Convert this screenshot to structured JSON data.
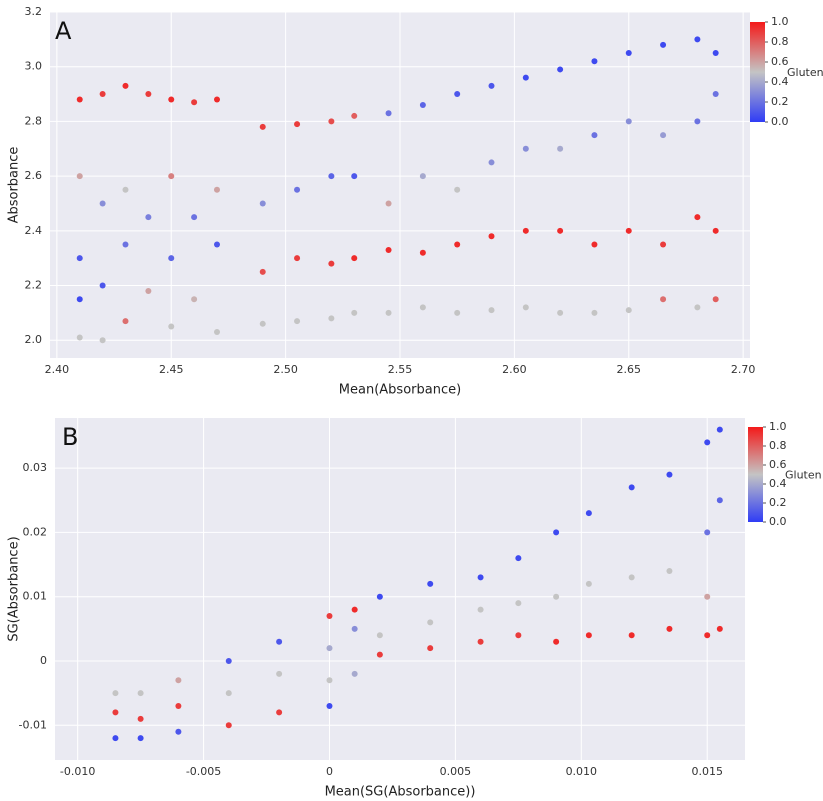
{
  "chart_data": [
    {
      "type": "scatter",
      "panel": "A",
      "xlabel": "Mean(Absorbance)",
      "ylabel": "Absorbance",
      "xlim": [
        2.397,
        2.703
      ],
      "ylim": [
        1.935,
        3.2
      ],
      "xticks": [
        {
          "value": 2.4,
          "label": "2.40"
        },
        2.45,
        {
          "value": 2.5,
          "label": "2.50"
        },
        2.55,
        {
          "value": 2.6,
          "label": "2.60"
        },
        2.65,
        {
          "value": 2.7,
          "label": "2.70"
        }
      ],
      "yticks": [
        {
          "value": 2,
          "label": "2.0"
        },
        2.2,
        2.4,
        2.6,
        2.8,
        {
          "value": 3,
          "label": "3.0"
        },
        3.2
      ],
      "grid": true,
      "colorbar": {
        "label": "Gluten",
        "lim": [
          0,
          1
        ],
        "ticks": [
          {
            "value": 0,
            "label": "0.0"
          },
          0.2,
          0.4,
          0.6,
          0.8,
          {
            "value": 1,
            "label": "1.0"
          }
        ],
        "colors": [
          "#2f3cf5",
          "#c4c4c4",
          "#f41a1a"
        ]
      },
      "x": [
        2.41,
        2.41,
        2.41,
        2.41,
        2.41,
        2.42,
        2.42,
        2.42,
        2.42,
        2.43,
        2.43,
        2.43,
        2.43,
        2.44,
        2.44,
        2.44,
        2.45,
        2.45,
        2.45,
        2.45,
        2.46,
        2.46,
        2.46,
        2.47,
        2.47,
        2.47,
        2.47,
        2.49,
        2.49,
        2.49,
        2.49,
        2.505,
        2.505,
        2.505,
        2.505,
        2.52,
        2.52,
        2.52,
        2.52,
        2.53,
        2.53,
        2.53,
        2.53,
        2.545,
        2.545,
        2.545,
        2.545,
        2.56,
        2.56,
        2.56,
        2.56,
        2.575,
        2.575,
        2.575,
        2.575,
        2.59,
        2.59,
        2.59,
        2.59,
        2.605,
        2.605,
        2.605,
        2.605,
        2.62,
        2.62,
        2.62,
        2.62,
        2.635,
        2.635,
        2.635,
        2.635,
        2.65,
        2.65,
        2.65,
        2.65,
        2.665,
        2.665,
        2.665,
        2.665,
        2.68,
        2.68,
        2.68,
        2.68,
        2.688,
        2.688,
        2.688,
        2.688
      ],
      "y": [
        2.88,
        2.6,
        2.3,
        2.15,
        2.01,
        2.9,
        2.5,
        2.2,
        2.0,
        2.93,
        2.55,
        2.35,
        2.07,
        2.9,
        2.45,
        2.18,
        2.88,
        2.6,
        2.3,
        2.05,
        2.87,
        2.45,
        2.15,
        2.88,
        2.55,
        2.35,
        2.03,
        2.78,
        2.5,
        2.25,
        2.06,
        2.79,
        2.55,
        2.3,
        2.07,
        2.8,
        2.6,
        2.28,
        2.08,
        2.82,
        2.6,
        2.3,
        2.1,
        2.83,
        2.5,
        2.33,
        2.1,
        2.86,
        2.6,
        2.32,
        2.12,
        2.9,
        2.55,
        2.35,
        2.1,
        2.93,
        2.65,
        2.38,
        2.11,
        2.96,
        2.7,
        2.4,
        2.12,
        2.99,
        2.7,
        2.4,
        2.1,
        3.02,
        2.75,
        2.35,
        2.1,
        3.05,
        2.8,
        2.4,
        2.11,
        3.08,
        2.75,
        2.35,
        2.15,
        3.1,
        2.8,
        2.45,
        2.12,
        3.05,
        2.9,
        2.4,
        2.15
      ],
      "c": [
        0.95,
        0.6,
        0.1,
        0.05,
        0.5,
        0.9,
        0.3,
        0.1,
        0.5,
        0.95,
        0.5,
        0.2,
        0.75,
        0.9,
        0.25,
        0.6,
        0.95,
        0.7,
        0.15,
        0.5,
        0.9,
        0.2,
        0.55,
        0.95,
        0.6,
        0.1,
        0.5,
        0.9,
        0.3,
        0.85,
        0.5,
        0.9,
        0.2,
        0.9,
        0.5,
        0.85,
        0.15,
        0.9,
        0.5,
        0.8,
        0.1,
        0.95,
        0.5,
        0.2,
        0.6,
        0.95,
        0.5,
        0.15,
        0.4,
        0.95,
        0.5,
        0.1,
        0.5,
        0.95,
        0.5,
        0.1,
        0.3,
        0.95,
        0.5,
        0.05,
        0.3,
        0.95,
        0.5,
        0.05,
        0.4,
        0.95,
        0.5,
        0.05,
        0.2,
        0.95,
        0.5,
        0.05,
        0.3,
        0.95,
        0.5,
        0.05,
        0.35,
        0.9,
        0.75,
        0.05,
        0.2,
        0.95,
        0.5,
        0.05,
        0.2,
        0.95,
        0.8
      ]
    },
    {
      "type": "scatter",
      "panel": "B",
      "xlabel": "Mean(SG(Absorbance))",
      "ylabel": "SG(Absorbance)",
      "xlim": [
        -0.0109,
        0.0165
      ],
      "ylim": [
        -0.0154,
        0.0378
      ],
      "xticks": [
        {
          "value": -0.01,
          "label": "-0.010"
        },
        -0.005,
        0,
        0.005,
        {
          "value": 0.01,
          "label": "0.010"
        },
        0.015
      ],
      "yticks": [
        -0.01,
        0,
        0.01,
        0.02,
        0.03
      ],
      "grid": true,
      "colorbar": {
        "label": "Gluten",
        "lim": [
          0,
          1
        ],
        "ticks": [
          {
            "value": 0,
            "label": "0.0"
          },
          0.2,
          0.4,
          0.6,
          0.8,
          {
            "value": 1,
            "label": "1.0"
          }
        ],
        "colors": [
          "#2f3cf5",
          "#c4c4c4",
          "#f41a1a"
        ]
      },
      "x": [
        -0.0085,
        -0.0085,
        -0.0085,
        -0.0075,
        -0.0075,
        -0.0075,
        -0.006,
        -0.006,
        -0.006,
        -0.004,
        -0.004,
        -0.004,
        -0.002,
        -0.002,
        -0.002,
        0,
        0,
        0,
        0,
        0.001,
        0.001,
        0.001,
        0.002,
        0.002,
        0.002,
        0.004,
        0.004,
        0.004,
        0.006,
        0.006,
        0.006,
        0.0075,
        0.0075,
        0.0075,
        0.009,
        0.009,
        0.009,
        0.0103,
        0.0103,
        0.0103,
        0.012,
        0.012,
        0.012,
        0.0135,
        0.0135,
        0.0135,
        0.015,
        0.015,
        0.015,
        0.015,
        0.0155,
        0.0155,
        0.0155
      ],
      "y": [
        -0.005,
        -0.008,
        -0.012,
        -0.005,
        -0.009,
        -0.012,
        -0.003,
        -0.007,
        -0.011,
        0,
        -0.005,
        -0.01,
        0.003,
        -0.002,
        -0.008,
        0.007,
        0.002,
        -0.003,
        -0.007,
        0.008,
        0.005,
        -0.002,
        0.01,
        0.004,
        0.001,
        0.012,
        0.006,
        0.002,
        0.013,
        0.008,
        0.003,
        0.016,
        0.009,
        0.004,
        0.02,
        0.01,
        0.003,
        0.023,
        0.012,
        0.004,
        0.027,
        0.013,
        0.004,
        0.029,
        0.014,
        0.005,
        0.034,
        0.02,
        0.01,
        0.004,
        0.036,
        0.025,
        0.005
      ],
      "c": [
        0.5,
        0.9,
        0.05,
        0.5,
        0.9,
        0.05,
        0.6,
        0.9,
        0.1,
        0.1,
        0.5,
        0.9,
        0.1,
        0.5,
        0.9,
        0.9,
        0.4,
        0.5,
        0.05,
        0.95,
        0.3,
        0.4,
        0.05,
        0.5,
        0.9,
        0.05,
        0.5,
        0.9,
        0.05,
        0.5,
        0.9,
        0.05,
        0.5,
        0.9,
        0.05,
        0.5,
        0.95,
        0.05,
        0.5,
        0.95,
        0.05,
        0.5,
        0.95,
        0.05,
        0.5,
        0.95,
        0.05,
        0.2,
        0.6,
        0.95,
        0.05,
        0.15,
        0.95
      ]
    }
  ]
}
